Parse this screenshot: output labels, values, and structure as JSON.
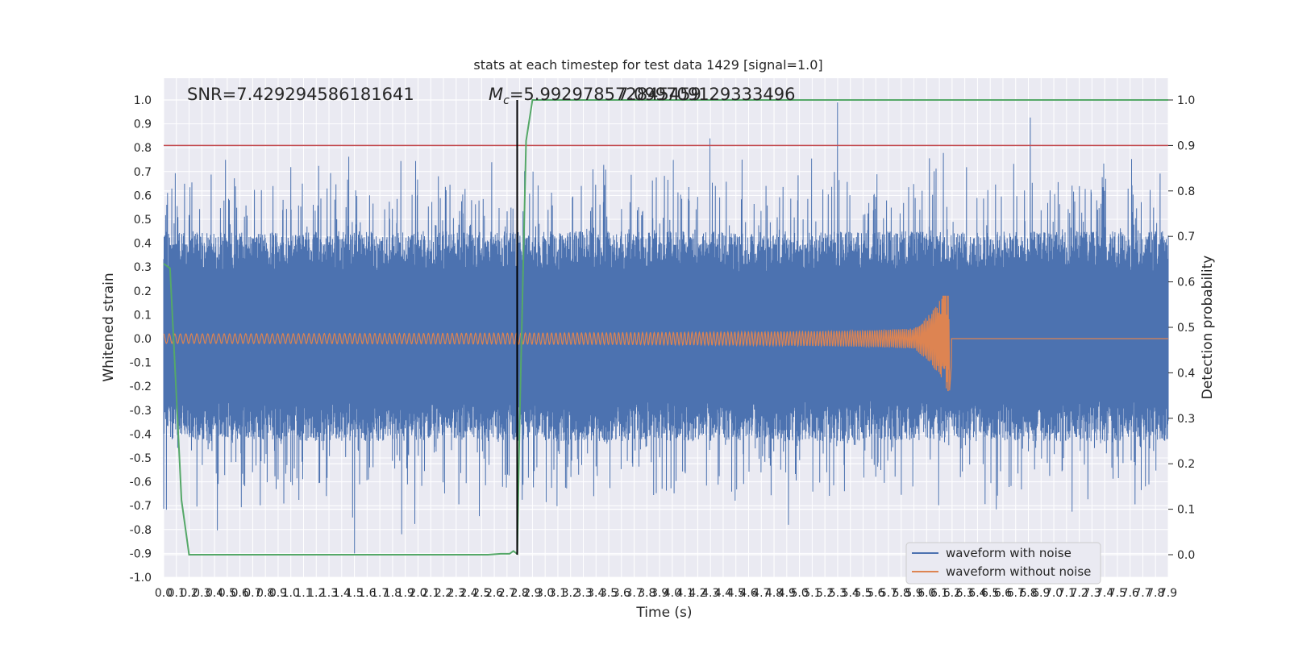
{
  "chart_data": {
    "type": "line",
    "title": "stats at each timestep for test data 1429 [signal=1.0]",
    "xlabel": "Time (s)",
    "ylabel": "Whitened strain",
    "y2label": "Detection probability",
    "xlim": [
      0.0,
      7.9
    ],
    "ylim": [
      -1.0,
      1.0
    ],
    "y2lim": [
      -0.05,
      1.0
    ],
    "grid": true,
    "legend_position": "lower-right",
    "annotations": {
      "snr": "SNR=7.429294586181641",
      "mc_symbol": "M",
      "mc_subscript": "c",
      "mc_value": "=5.992978572845459",
      "overlap_text": "7.099709129333496"
    },
    "threshold": {
      "y2": 0.9,
      "color": "#c44e52"
    },
    "marker_time": 2.78,
    "series": [
      {
        "name": "waveform with noise",
        "color": "#4c72b0"
      },
      {
        "name": "waveform without noise",
        "color": "#dd8452"
      },
      {
        "color": "#55a868",
        "axis": "y2",
        "x": [
          0.0,
          0.05,
          0.1,
          0.14,
          0.18,
          0.2,
          0.25,
          0.5,
          1.0,
          1.5,
          2.0,
          2.4,
          2.55,
          2.65,
          2.72,
          2.75,
          2.78,
          2.8,
          2.85,
          2.9,
          3.0,
          4.0,
          5.0,
          6.0,
          7.0,
          7.9
        ],
        "y": [
          0.64,
          0.63,
          0.35,
          0.12,
          0.04,
          0.0,
          0.0,
          0.0,
          0.0,
          0.0,
          0.0,
          0.0,
          0.0,
          0.002,
          0.002,
          0.008,
          0.002,
          0.3,
          0.91,
          1.0,
          1.0,
          1.0,
          1.0,
          1.0,
          1.0,
          1.0
        ]
      }
    ],
    "xticks": [
      0.0,
      0.1,
      0.2,
      0.3,
      0.4,
      0.5,
      0.6,
      0.7,
      0.8,
      0.9,
      1.0,
      1.1,
      1.2,
      1.3,
      1.4,
      1.5,
      1.6,
      1.7,
      1.8,
      1.9,
      2.0,
      2.1,
      2.2,
      2.3,
      2.4,
      2.5,
      2.6,
      2.7,
      2.8,
      2.9,
      3.0,
      3.1,
      3.2,
      3.3,
      3.4,
      3.5,
      3.6,
      3.7,
      3.8,
      3.9,
      4.0,
      4.1,
      4.2,
      4.3,
      4.4,
      4.5,
      4.6,
      4.7,
      4.8,
      4.9,
      5.0,
      5.1,
      5.2,
      5.3,
      5.4,
      5.5,
      5.6,
      5.7,
      5.8,
      5.9,
      6.0,
      6.1,
      6.2,
      6.3,
      6.4,
      6.5,
      6.6,
      6.7,
      6.8,
      6.9,
      7.0,
      7.1,
      7.2,
      7.3,
      7.4,
      7.5,
      7.6,
      7.7,
      7.8,
      7.9
    ],
    "yticks": [
      -1.0,
      -0.9,
      -0.8,
      -0.7,
      -0.6,
      -0.5,
      -0.4,
      -0.3,
      -0.2,
      -0.1,
      0.0,
      0.1,
      0.2,
      0.3,
      0.4,
      0.5,
      0.6,
      0.7,
      0.8,
      0.9,
      1.0
    ],
    "y2ticks": [
      0.0,
      0.1,
      0.2,
      0.3,
      0.4,
      0.5,
      0.6,
      0.7,
      0.8,
      0.9,
      1.0
    ],
    "waveform_without_noise": {
      "merger_time": 6.18,
      "pre_merger_amplitude": 0.02,
      "peak_high": 0.18,
      "peak_low": -0.22
    },
    "waveform_with_noise": {
      "max_peak": 1.0,
      "max_peak_time": 5.3,
      "min_peak": -0.9,
      "min_peak_time": 1.5
    }
  }
}
